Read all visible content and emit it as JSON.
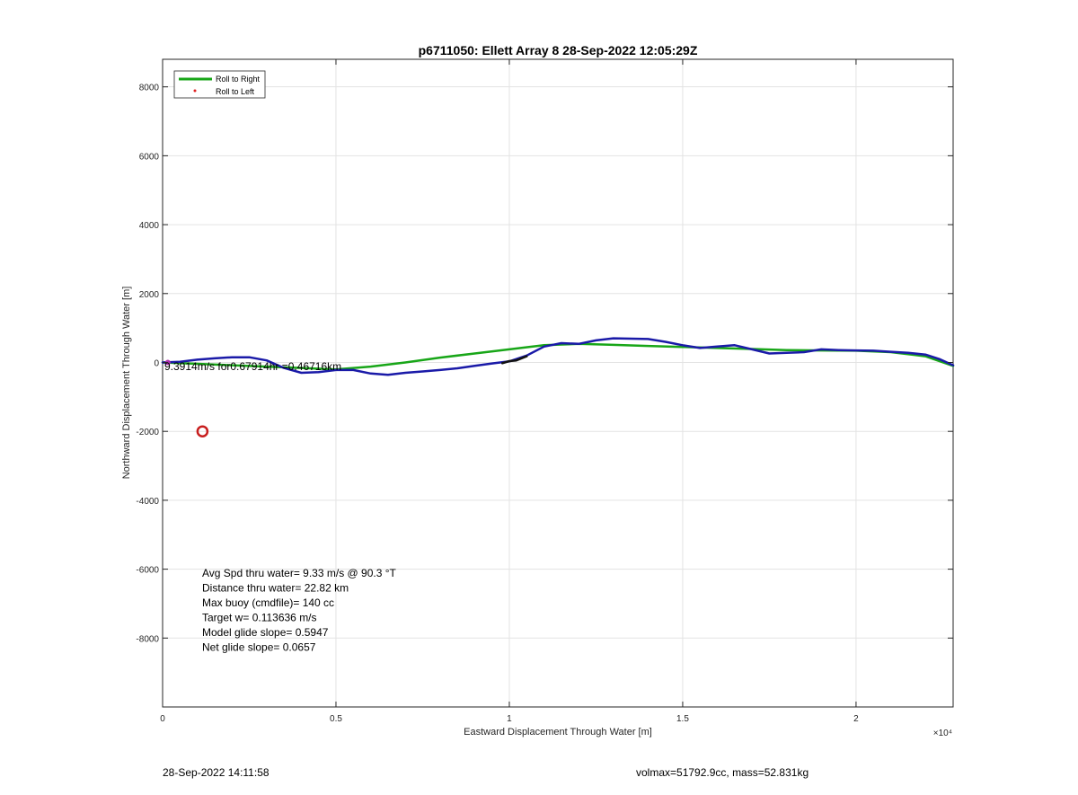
{
  "chart_data": {
    "type": "line",
    "title": "p6711050: Ellett Array 8 28-Sep-2022 12:05:29Z",
    "xlabel": "Eastward Displacement Through Water [m]",
    "ylabel": "Northward Displacement Through Water [m]",
    "xlim": [
      0,
      22800
    ],
    "ylim": [
      -10000,
      8800
    ],
    "x_ticks": [
      0,
      5000,
      10000,
      15000,
      20000
    ],
    "x_tick_labels": [
      "0",
      "0.5",
      "1",
      "1.5",
      "2"
    ],
    "x_exponent_label": "×10⁴",
    "y_ticks": [
      -8000,
      -6000,
      -4000,
      -2000,
      0,
      2000,
      4000,
      6000,
      8000
    ],
    "y_tick_labels": [
      "-8000",
      "-6000",
      "-4000",
      "-2000",
      "0",
      "2000",
      "4000",
      "6000",
      "8000"
    ],
    "grid": true,
    "legend": {
      "placement": "top-left",
      "entries": [
        {
          "label": "Roll to Right",
          "color": "#18a618",
          "style": "line"
        },
        {
          "label": "Roll to Left",
          "color": "#e02020",
          "style": "dot"
        }
      ]
    },
    "series": [
      {
        "name": "Roll to Right",
        "color": "#18a618",
        "x": [
          0,
          1000,
          2000,
          3000,
          4000,
          5000,
          6000,
          7000,
          8000,
          9000,
          10000,
          11000,
          12000,
          13000,
          14000,
          15000,
          16000,
          17000,
          18000,
          19000,
          20000,
          21000,
          22000,
          22800
        ],
        "y": [
          0,
          -40,
          -80,
          -120,
          -160,
          -200,
          -120,
          0,
          140,
          260,
          380,
          500,
          540,
          510,
          480,
          450,
          420,
          390,
          360,
          350,
          340,
          300,
          180,
          -100
        ]
      },
      {
        "name": "",
        "color": "#1a1aa8",
        "x": [
          0,
          500,
          1000,
          1500,
          2000,
          2500,
          3000,
          3500,
          4000,
          4500,
          5000,
          5500,
          6000,
          6500,
          7000,
          7500,
          8000,
          8500,
          9000,
          9500,
          10000,
          10500,
          11000,
          11500,
          12000,
          12500,
          13000,
          13500,
          14000,
          14500,
          15000,
          15500,
          16000,
          16500,
          17000,
          17500,
          18000,
          18500,
          19000,
          19500,
          20000,
          20500,
          21000,
          21500,
          22000,
          22400,
          22800
        ],
        "y": [
          0,
          20,
          80,
          120,
          150,
          150,
          60,
          -160,
          -300,
          -280,
          -220,
          -220,
          -320,
          -360,
          -300,
          -260,
          -220,
          -170,
          -100,
          -30,
          30,
          200,
          460,
          560,
          540,
          640,
          700,
          690,
          680,
          600,
          500,
          420,
          460,
          500,
          380,
          260,
          280,
          300,
          380,
          360,
          350,
          340,
          310,
          280,
          230,
          100,
          -80
        ]
      },
      {
        "name": "",
        "color": "#111111",
        "x": [
          9800,
          10000,
          10200,
          10500
        ],
        "y": [
          -20,
          40,
          60,
          180
        ]
      }
    ],
    "markers": [
      {
        "shape": "circle",
        "x": 1150,
        "y": -2000,
        "color": "#c81e1e"
      },
      {
        "shape": "dot",
        "x": 150,
        "y": 0,
        "color": "#b030b0"
      }
    ],
    "annotations": [
      {
        "text": "9.3914m/s for0.67914hr =0.46716km",
        "x": 0,
        "y": -60
      }
    ],
    "stats_lines": [
      "Avg Spd thru water=  9.33 m/s @  90.3 °T",
      "Distance thru water= 22.82 km",
      "Max buoy (cmdfile)= 140 cc",
      "Target w= 0.113636 m/s",
      "Model glide slope= 0.5947",
      "Net glide slope= 0.0657"
    ]
  },
  "footer": {
    "left": "28-Sep-2022 14:11:58",
    "right": "volmax=51792.9cc, mass=52.831kg"
  }
}
